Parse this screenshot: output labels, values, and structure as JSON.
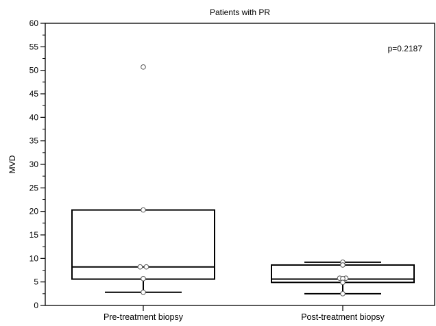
{
  "chart_data": {
    "type": "box",
    "title": "Patients with PR",
    "ylabel": "MVD",
    "xlabel": "",
    "ylim": [
      0,
      60
    ],
    "yticks": [
      0,
      5,
      10,
      15,
      20,
      25,
      30,
      35,
      40,
      45,
      50,
      55,
      60
    ],
    "annotation": "p=0.2187",
    "categories": [
      "Pre-treatment biopsy",
      "Post-treatment biopsy"
    ],
    "boxes": [
      {
        "whisker_low": 2.8,
        "q1": 5.6,
        "median": 8.2,
        "q3": 20.3,
        "whisker_high": 20.3
      },
      {
        "whisker_low": 2.5,
        "q1": 4.9,
        "median": 5.6,
        "q3": 8.6,
        "whisker_high": 9.2
      }
    ],
    "points": [
      [
        50.7,
        20.3,
        8.2,
        8.2,
        5.7,
        2.8
      ],
      [
        9.2,
        8.6,
        5.8,
        5.8,
        5.7,
        4.9,
        2.5
      ]
    ]
  }
}
